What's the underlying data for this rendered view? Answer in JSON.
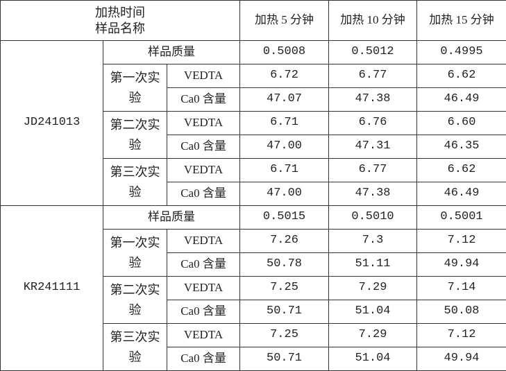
{
  "header": {
    "corner": [
      "加热时间",
      "样品名称"
    ],
    "columns": [
      "加热 5 分钟",
      "加热 10 分钟",
      "加热 15 分钟"
    ]
  },
  "samples": [
    {
      "name": "JD241013",
      "mass_label": "样品质量",
      "mass": [
        "0.5008",
        "0.5012",
        "0.4995"
      ],
      "experiments": [
        {
          "label": "第一次实验",
          "rows": [
            {
              "label": "VEDTA",
              "values": [
                "6.72",
                "6.77",
                "6.62"
              ]
            },
            {
              "label": "Ca0 含量",
              "values": [
                "47.07",
                "47.38",
                "46.49"
              ]
            }
          ]
        },
        {
          "label": "第二次实验",
          "rows": [
            {
              "label": "VEDTA",
              "values": [
                "6.71",
                "6.76",
                "6.60"
              ]
            },
            {
              "label": "Ca0 含量",
              "values": [
                "47.00",
                "47.31",
                "46.35"
              ]
            }
          ]
        },
        {
          "label": "第三次实验",
          "rows": [
            {
              "label": "VEDTA",
              "values": [
                "6.71",
                "6.77",
                "6.62"
              ]
            },
            {
              "label": "Ca0 含量",
              "values": [
                "47.00",
                "47.38",
                "46.49"
              ]
            }
          ]
        }
      ]
    },
    {
      "name": "KR241111",
      "mass_label": "样品质量",
      "mass": [
        "0.5015",
        "0.5010",
        "0.5001"
      ],
      "experiments": [
        {
          "label": "第一次实验",
          "rows": [
            {
              "label": "VEDTA",
              "values": [
                "7.26",
                "7.3",
                "7.12"
              ]
            },
            {
              "label": "Ca0 含量",
              "values": [
                "50.78",
                "51.11",
                "49.94"
              ]
            }
          ]
        },
        {
          "label": "第二次实验",
          "rows": [
            {
              "label": "VEDTA",
              "values": [
                "7.25",
                "7.29",
                "7.14"
              ]
            },
            {
              "label": "Ca0 含量",
              "values": [
                "50.71",
                "51.04",
                "50.08"
              ]
            }
          ]
        },
        {
          "label": "第三次实验",
          "rows": [
            {
              "label": "VEDTA",
              "values": [
                "7.25",
                "7.29",
                "7.12"
              ]
            },
            {
              "label": "Ca0 含量",
              "values": [
                "50.71",
                "51.04",
                "49.94"
              ]
            }
          ]
        }
      ]
    }
  ]
}
